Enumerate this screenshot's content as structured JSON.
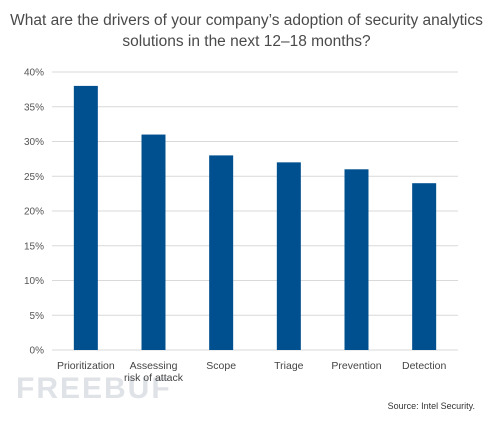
{
  "chart_data": {
    "type": "bar",
    "title": "What are the drivers of your company’s adoption of security analytics solutions in the next 12–18 months?",
    "categories": [
      [
        "Prioritization"
      ],
      [
        "Assessing",
        "risk of attack"
      ],
      [
        "Scope"
      ],
      [
        "Triage"
      ],
      [
        "Prevention"
      ],
      [
        "Detection"
      ]
    ],
    "values": [
      38,
      31,
      28,
      27,
      26,
      24
    ],
    "yticks": [
      "0%",
      "5%",
      "10%",
      "15%",
      "20%",
      "25%",
      "30%",
      "35%",
      "40%"
    ],
    "ylim": [
      0,
      40
    ],
    "unit": "%",
    "grid": true,
    "bar_color": "#00508f",
    "grid_color": "#d9d9d9"
  },
  "source": "Source: Intel Security.",
  "watermark": "FREEBUF"
}
